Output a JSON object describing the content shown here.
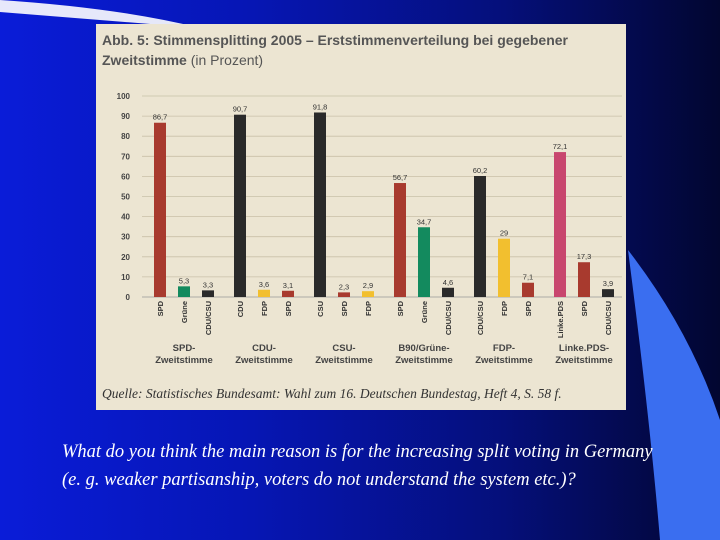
{
  "slide": {
    "question": "What do you think the main reason is for the increasing split voting in Germany (e. g. weaker partisanship, voters do not understand the system etc.)?"
  },
  "chart_data": {
    "type": "bar",
    "title": "Abb. 5: Stimmensplitting 2005 – Erststimmenverteilung bei gegebener Zweitstimme",
    "title_unit": "(in Prozent)",
    "source": "Quelle: Statistisches Bundesamt: Wahl zum 16. Deutschen Bundestag, Heft 4, S. 58 f.",
    "ylim": [
      0,
      100
    ],
    "yticks": [
      0,
      10,
      20,
      30,
      40,
      50,
      60,
      70,
      80,
      90,
      100
    ],
    "grid": true,
    "groups": [
      {
        "label": [
          "SPD-",
          "Zweitstimme"
        ],
        "bars": [
          {
            "category": "SPD",
            "value": 86.7,
            "label": "86,7",
            "color": "#a83a2e"
          },
          {
            "category": "Grüne",
            "value": 5.3,
            "label": "5,3",
            "color": "#138a5e"
          },
          {
            "category": "CDU/CSU",
            "value": 3.3,
            "label": "3,3",
            "color": "#2a2a2a"
          }
        ]
      },
      {
        "label": [
          "CDU-",
          "Zweitstimme"
        ],
        "bars": [
          {
            "category": "CDU",
            "value": 90.7,
            "label": "90,7",
            "color": "#2a2a2a"
          },
          {
            "category": "FDP",
            "value": 3.6,
            "label": "3,6",
            "color": "#f2bf2f"
          },
          {
            "category": "SPD",
            "value": 3.1,
            "label": "3,1",
            "color": "#a83a2e"
          }
        ]
      },
      {
        "label": [
          "CSU-",
          "Zweitstimme"
        ],
        "bars": [
          {
            "category": "CSU",
            "value": 91.8,
            "label": "91,8",
            "color": "#2a2a2a"
          },
          {
            "category": "SPD",
            "value": 2.3,
            "label": "2,3",
            "color": "#a83a2e"
          },
          {
            "category": "FDP",
            "value": 2.9,
            "label": "2,9",
            "color": "#f2bf2f"
          }
        ]
      },
      {
        "label": [
          "B90/Grüne-",
          "Zweitstimme"
        ],
        "bars": [
          {
            "category": "SPD",
            "value": 56.7,
            "label": "56,7",
            "color": "#a83a2e"
          },
          {
            "category": "Grüne",
            "value": 34.7,
            "label": "34,7",
            "color": "#138a5e"
          },
          {
            "category": "CDU/CSU",
            "value": 4.6,
            "label": "4,6",
            "color": "#2a2a2a"
          }
        ]
      },
      {
        "label": [
          "FDP-",
          "Zweitstimme"
        ],
        "bars": [
          {
            "category": "CDU/CSU",
            "value": 60.2,
            "label": "60,2",
            "color": "#2a2a2a"
          },
          {
            "category": "FDP",
            "value": 29,
            "label": "29",
            "color": "#f2bf2f"
          },
          {
            "category": "SPD",
            "value": 7.1,
            "label": "7,1",
            "color": "#a83a2e"
          }
        ]
      },
      {
        "label": [
          "Linke.PDS-",
          "Zweitstimme"
        ],
        "bars": [
          {
            "category": "Linke.PDS",
            "value": 72.1,
            "label": "72,1",
            "color": "#c8466e"
          },
          {
            "category": "SPD",
            "value": 17.3,
            "label": "17,3",
            "color": "#a83a2e"
          },
          {
            "category": "CDU/CSU",
            "value": 3.9,
            "label": "3,9",
            "color": "#2a2a2a"
          }
        ]
      }
    ]
  }
}
